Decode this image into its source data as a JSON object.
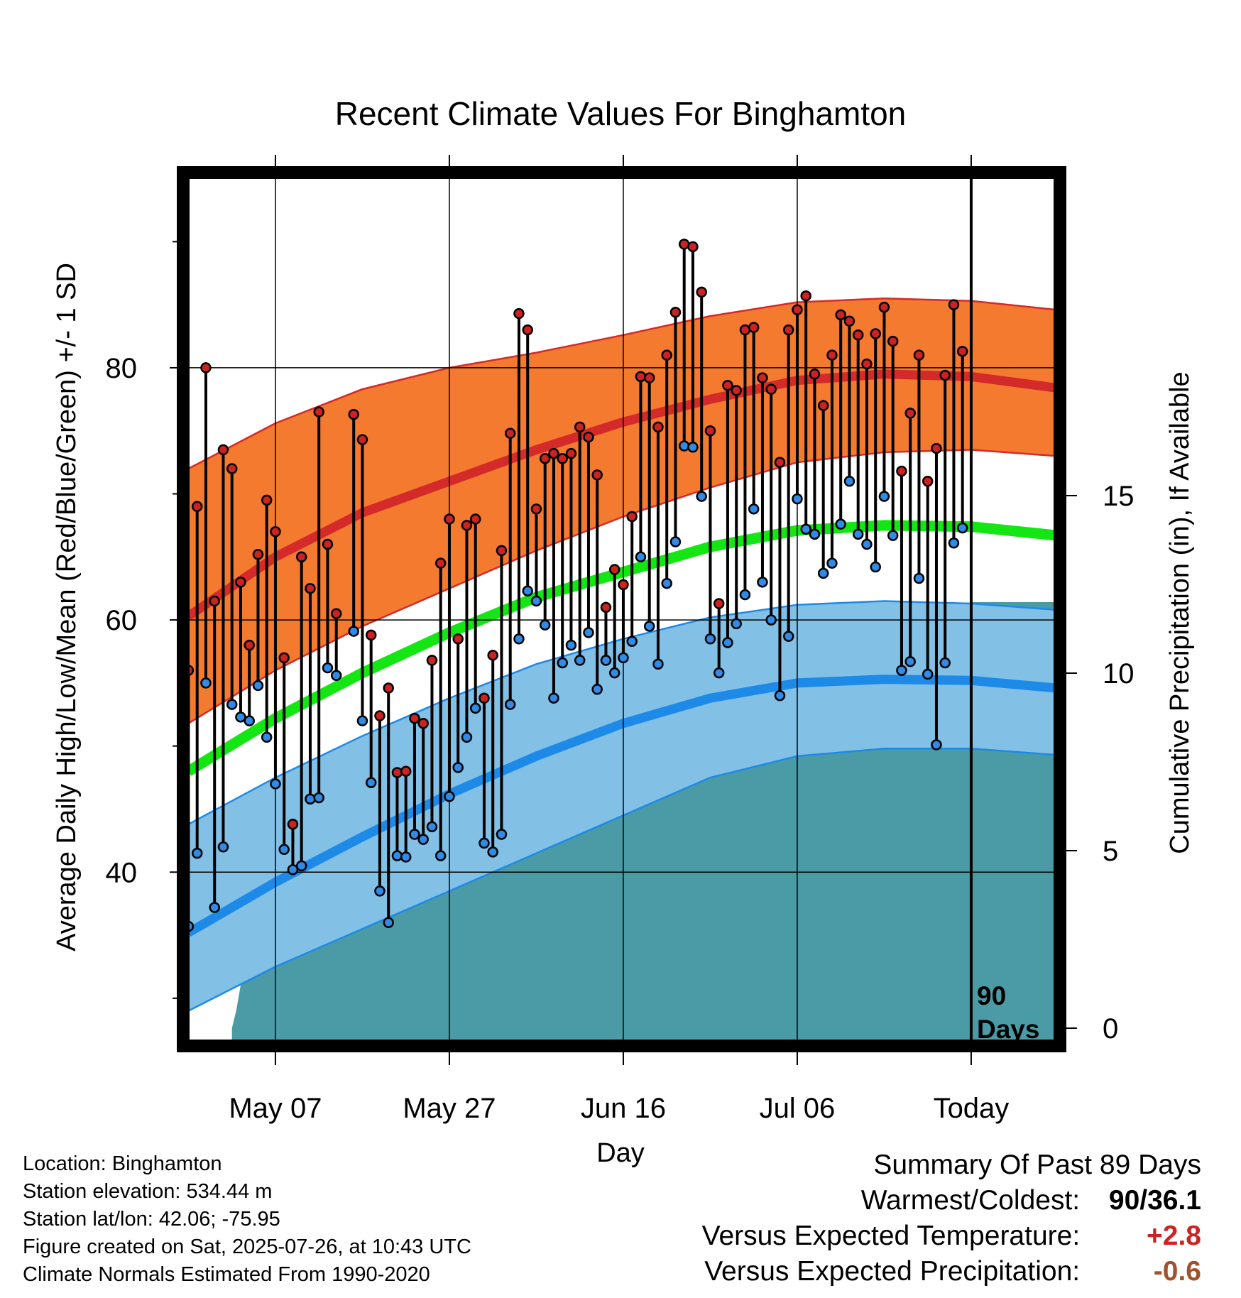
{
  "chart_data": {
    "type": "line",
    "title": "Recent Climate Values For Binghamton",
    "xlabel": "Day",
    "ylabel": "Average Daily High/Low/Mean (Red/Blue/Green) +/- 1 SD",
    "y2label": "Cumulative Precipitation (in), If Available",
    "x_ticks": [
      {
        "day": 10,
        "label": "May 07"
      },
      {
        "day": 30,
        "label": "May 27"
      },
      {
        "day": 50,
        "label": "Jun 16"
      },
      {
        "day": 70,
        "label": "Jul 06"
      },
      {
        "day": 90,
        "label": "Today"
      }
    ],
    "xlim": [
      -0.2,
      99.8
    ],
    "ylim": [
      26.5,
      95.2
    ],
    "y_ticks": [
      40,
      60,
      80
    ],
    "y_minor_ticks": [
      30,
      50,
      70,
      90
    ],
    "y2lim": [
      -0.4,
      24.0
    ],
    "y2_ticks": [
      0,
      5,
      10,
      15
    ],
    "today_day": 90,
    "today_label": [
      "90",
      "Days"
    ],
    "colors": {
      "high_sd": "#f47a30",
      "high_mean": "#d42a2a",
      "low_sd": "#82c0e6",
      "low_mean": "#1e8ae8",
      "mean_line": "#14e614",
      "precip": "#4a9ba6",
      "high_point": "#cc2222",
      "low_point": "#2f8be6",
      "positive": "#cc2222",
      "negative": "#a0522d"
    },
    "normals": {
      "days": [
        0,
        10,
        20,
        30,
        40,
        50,
        60,
        70,
        80,
        90,
        99.8
      ],
      "high_upper": [
        72.0,
        75.6,
        78.3,
        80.0,
        81.2,
        82.6,
        84.1,
        85.2,
        85.5,
        85.3,
        84.6
      ],
      "high_mean": [
        60.3,
        65.0,
        68.5,
        71.0,
        73.5,
        75.7,
        77.5,
        79.0,
        79.5,
        79.3,
        78.4
      ],
      "high_lower": [
        51.8,
        56.0,
        59.5,
        62.5,
        65.5,
        68.2,
        70.5,
        72.5,
        73.3,
        73.5,
        73.0
      ],
      "mean": [
        48.0,
        52.2,
        55.8,
        59.0,
        61.8,
        63.8,
        65.8,
        67.1,
        67.5,
        67.4,
        66.7
      ],
      "low_upper": [
        43.8,
        47.5,
        50.8,
        53.8,
        56.5,
        58.5,
        60.2,
        61.2,
        61.5,
        61.3,
        60.8
      ],
      "low_mean": [
        35.2,
        39.2,
        42.8,
        46.2,
        49.2,
        51.8,
        53.8,
        55.0,
        55.3,
        55.2,
        54.6
      ],
      "low_lower": [
        29.0,
        32.5,
        35.5,
        38.5,
        41.5,
        44.5,
        47.5,
        49.2,
        49.8,
        49.8,
        49.3
      ]
    },
    "daily": {
      "days": [
        0,
        1,
        2,
        3,
        4,
        5,
        6,
        7,
        8,
        9,
        10,
        11,
        12,
        13,
        14,
        15,
        16,
        17,
        18,
        19,
        20,
        21,
        22,
        23,
        24,
        25,
        26,
        27,
        28,
        29,
        30,
        31,
        32,
        33,
        34,
        35,
        36,
        37,
        38,
        39,
        40,
        41,
        42,
        43,
        44,
        45,
        46,
        47,
        48,
        49,
        50,
        51,
        52,
        53,
        54,
        55,
        56,
        57,
        58,
        59,
        60,
        61,
        62,
        63,
        64,
        65,
        66,
        67,
        68,
        69,
        70,
        71,
        72,
        73,
        74,
        75,
        76,
        77,
        78,
        79,
        80,
        81,
        82,
        83,
        84,
        85,
        86,
        87,
        88,
        89
      ],
      "high": [
        56,
        69,
        80,
        61.5,
        73.5,
        72,
        63,
        58,
        65.2,
        69.5,
        67,
        57,
        43.8,
        65,
        62.5,
        76.5,
        66,
        60.5,
        null,
        76.3,
        74.3,
        58.8,
        52.4,
        54.6,
        47.9,
        48,
        52.2,
        51.8,
        56.8,
        64.5,
        68,
        58.5,
        67.5,
        68,
        53.8,
        57.2,
        65.5,
        74.8,
        84.3,
        83,
        68.8,
        72.8,
        73.2,
        72.8,
        73.2,
        75.3,
        74.5,
        71.5,
        61,
        64,
        62.8,
        68.2,
        79.3,
        79.2,
        75.3,
        81,
        84.4,
        89.8,
        89.6,
        86,
        75,
        61.3,
        78.6,
        78.2,
        83,
        83.2,
        79.2,
        78.3,
        72.5,
        83,
        84.6,
        85.7,
        79.5,
        77,
        81,
        84.2,
        83.7,
        82.6,
        80.3,
        82.7,
        84.8,
        82.1,
        71.8,
        76.4,
        81,
        71,
        73.6,
        79.4,
        85,
        81.3
      ],
      "low": [
        35.7,
        41.5,
        55,
        37.2,
        42,
        53.3,
        52.3,
        52,
        54.8,
        50.7,
        47,
        41.8,
        40.2,
        40.5,
        45.8,
        45.9,
        56.2,
        55.6,
        null,
        59.1,
        52,
        47.1,
        38.5,
        36,
        41.3,
        41.2,
        43,
        42.6,
        43.6,
        41.3,
        46,
        48.3,
        50.7,
        53,
        42.3,
        41.6,
        43,
        53.3,
        58.5,
        62.3,
        61.5,
        59.6,
        53.8,
        56.6,
        58,
        56.8,
        59,
        54.5,
        56.8,
        55.8,
        57,
        58.3,
        65,
        59.5,
        56.5,
        62.9,
        66.2,
        73.8,
        73.7,
        69.8,
        58.5,
        55.8,
        58.2,
        59.7,
        62,
        68.8,
        63,
        60,
        54,
        58.7,
        69.6,
        67.2,
        66.8,
        63.7,
        64.5,
        67.6,
        71,
        66.8,
        66,
        64.2,
        69.8,
        66.7,
        56,
        56.7,
        63.3,
        55.7,
        50.1,
        56.6,
        66.1,
        67.3
      ]
    },
    "precip": {
      "days": [
        5,
        5.5,
        6,
        7,
        8,
        9,
        10,
        11,
        12,
        14,
        16,
        17,
        18,
        19,
        19.5,
        20,
        21,
        22,
        23,
        24,
        24.5,
        25,
        26,
        27,
        28,
        29,
        30,
        32,
        33,
        34,
        35,
        38,
        40,
        41,
        42,
        43,
        44,
        45,
        46,
        48,
        50,
        51,
        52,
        53,
        54,
        55,
        56,
        57,
        57.5,
        58,
        60,
        61,
        62,
        63,
        64,
        65,
        66,
        67,
        68,
        69,
        70,
        71,
        72,
        73,
        74,
        75,
        76,
        77,
        78,
        78.5,
        79,
        80,
        81,
        82,
        83,
        84,
        85,
        86,
        87,
        88,
        89,
        89.5,
        90,
        92,
        94,
        96,
        99.8
      ],
      "values": [
        0.0,
        0.5,
        1.2,
        1.7,
        2.0,
        2.4,
        2.9,
        2.9,
        3.2,
        3.2,
        3.2,
        3.3,
        3.3,
        3.4,
        3.6,
        3.9,
        4.0,
        4.0,
        4.0,
        4.1,
        4.1,
        4.5,
        4.8,
        5.0,
        5.1,
        5.1,
        5.3,
        5.3,
        5.6,
        6.3,
        6.3,
        6.3,
        6.3,
        6.5,
        6.6,
        6.8,
        6.9,
        7.1,
        7.1,
        7.1,
        7.2,
        7.2,
        7.2,
        7.3,
        7.5,
        7.5,
        7.5,
        8.4,
        8.4,
        8.4,
        8.6,
        8.7,
        8.7,
        8.7,
        8.8,
        8.8,
        8.8,
        9.1,
        9.1,
        9.1,
        9.1,
        9.2,
        9.2,
        9.3,
        9.3,
        9.3,
        9.3,
        9.4,
        9.4,
        9.5,
        10.8,
        10.8,
        10.8,
        10.8,
        10.8,
        10.9,
        10.9,
        10.9,
        11.0,
        11.0,
        11.0,
        11.4,
        12.0,
        12.0,
        12.0,
        12.0,
        12.0
      ]
    }
  },
  "info": {
    "location": "Location: Binghamton",
    "elevation": "Station elevation: 534.44 m",
    "latlon": "Station lat/lon: 42.06; -75.95",
    "created": "Figure created on Sat, 2025-07-26, at 10:43 UTC",
    "normals": "Climate Normals Estimated From 1990-2020"
  },
  "summary": {
    "title": "Summary Of Past 89 Days",
    "warmest_label": "Warmest/Coldest:",
    "warmest_value": "90/36.1",
    "temp_label": "Versus Expected Temperature:",
    "temp_value": "+2.8",
    "precip_label": "Versus Expected Precipitation:",
    "precip_value": "-0.6"
  }
}
